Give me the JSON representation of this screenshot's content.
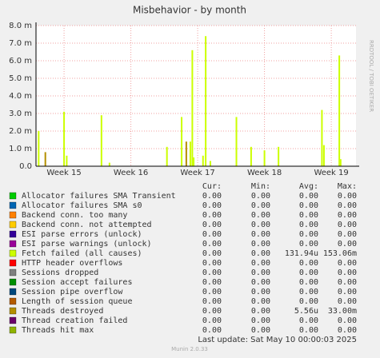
{
  "chart_data": {
    "type": "bar",
    "title": "Misbehavior - by month",
    "side_label": "RRDTOOL / TOBI OETIKER",
    "xlim": [
      14.58,
      19.37
    ],
    "xticks": [
      {
        "value": 15,
        "label": "Week 15"
      },
      {
        "value": 16,
        "label": "Week 16"
      },
      {
        "value": 17,
        "label": "Week 17"
      },
      {
        "value": 18,
        "label": "Week 18"
      },
      {
        "value": 19,
        "label": "Week 19"
      }
    ],
    "ylim": [
      0,
      0.008
    ],
    "yticks": [
      {
        "value": 0,
        "label": "0.0"
      },
      {
        "value": 0.001,
        "label": "1.0 m"
      },
      {
        "value": 0.002,
        "label": "2.0 m"
      },
      {
        "value": 0.003,
        "label": "3.0 m"
      },
      {
        "value": 0.004,
        "label": "4.0 m"
      },
      {
        "value": 0.005,
        "label": "5.0 m"
      },
      {
        "value": 0.006,
        "label": "6.0 m"
      },
      {
        "value": 0.007,
        "label": "7.0 m"
      },
      {
        "value": 0.008,
        "label": "8.0 m"
      }
    ],
    "grid": true,
    "legend_headers": [
      "Cur:",
      "Min:",
      "Avg:",
      "Max:"
    ],
    "series": [
      {
        "name": "Allocator failures SMA Transient",
        "color": "#00cc00",
        "cur": "0.00",
        "min": "0.00",
        "avg": "0.00",
        "max": "0.00"
      },
      {
        "name": "Allocator failures SMA s0",
        "color": "#0066b3",
        "cur": "0.00",
        "min": "0.00",
        "avg": "0.00",
        "max": "0.00"
      },
      {
        "name": "Backend conn. too many",
        "color": "#ff8000",
        "cur": "0.00",
        "min": "0.00",
        "avg": "0.00",
        "max": "0.00"
      },
      {
        "name": "Backend conn. not attempted",
        "color": "#ffcc00",
        "cur": "0.00",
        "min": "0.00",
        "avg": "0.00",
        "max": "0.00"
      },
      {
        "name": "ESI parse errors (unlock)",
        "color": "#330099",
        "cur": "0.00",
        "min": "0.00",
        "avg": "0.00",
        "max": "0.00"
      },
      {
        "name": "ESI parse warnings (unlock)",
        "color": "#990099",
        "cur": "0.00",
        "min": "0.00",
        "avg": "0.00",
        "max": "0.00"
      },
      {
        "name": "Fetch failed (all causes)",
        "color": "#ccff00",
        "cur": "0.00",
        "min": "0.00",
        "avg": "131.94u",
        "max": "153.06m",
        "x": [
          14.62,
          15.0,
          15.04,
          15.56,
          15.68,
          16.54,
          16.76,
          16.89,
          16.92,
          16.94,
          17.08,
          17.12,
          17.19,
          17.58,
          17.8,
          18.0,
          18.21,
          18.86,
          18.89,
          19.12,
          19.14
        ],
        "values": [
          0.002,
          0.0031,
          0.0006,
          0.0029,
          0.0002,
          0.0011,
          0.0028,
          0.0014,
          0.0066,
          0.0005,
          0.0006,
          0.0074,
          0.0003,
          0.0028,
          0.0011,
          0.0009,
          0.0011,
          0.0032,
          0.0012,
          0.0063,
          0.0004
        ]
      },
      {
        "name": "HTTP header overflows",
        "color": "#ff0000",
        "cur": "0.00",
        "min": "0.00",
        "avg": "0.00",
        "max": "0.00"
      },
      {
        "name": "Sessions dropped",
        "color": "#808080",
        "cur": "0.00",
        "min": "0.00",
        "avg": "0.00",
        "max": "0.00"
      },
      {
        "name": "Session accept failures",
        "color": "#008f00",
        "cur": "0.00",
        "min": "0.00",
        "avg": "0.00",
        "max": "0.00"
      },
      {
        "name": "Session pipe overflow",
        "color": "#00487d",
        "cur": "0.00",
        "min": "0.00",
        "avg": "0.00",
        "max": "0.00"
      },
      {
        "name": "Length of session queue",
        "color": "#b35a00",
        "cur": "0.00",
        "min": "0.00",
        "avg": "0.00",
        "max": "0.00"
      },
      {
        "name": "Threads destroyed",
        "color": "#b38f00",
        "cur": "0.00",
        "min": "0.00",
        "avg": "5.56u",
        "max": "33.00m",
        "x": [
          14.72,
          16.83
        ],
        "values": [
          0.0008,
          0.0014
        ]
      },
      {
        "name": "Thread creation failed",
        "color": "#6b006b",
        "cur": "0.00",
        "min": "0.00",
        "avg": "0.00",
        "max": "0.00"
      },
      {
        "name": "Threads hit max",
        "color": "#8fb300",
        "cur": "0.00",
        "min": "0.00",
        "avg": "0.00",
        "max": "0.00"
      }
    ],
    "last_update": "Last update: Sat May 10 00:00:03 2025",
    "footer": "Munin 2.0.33"
  }
}
